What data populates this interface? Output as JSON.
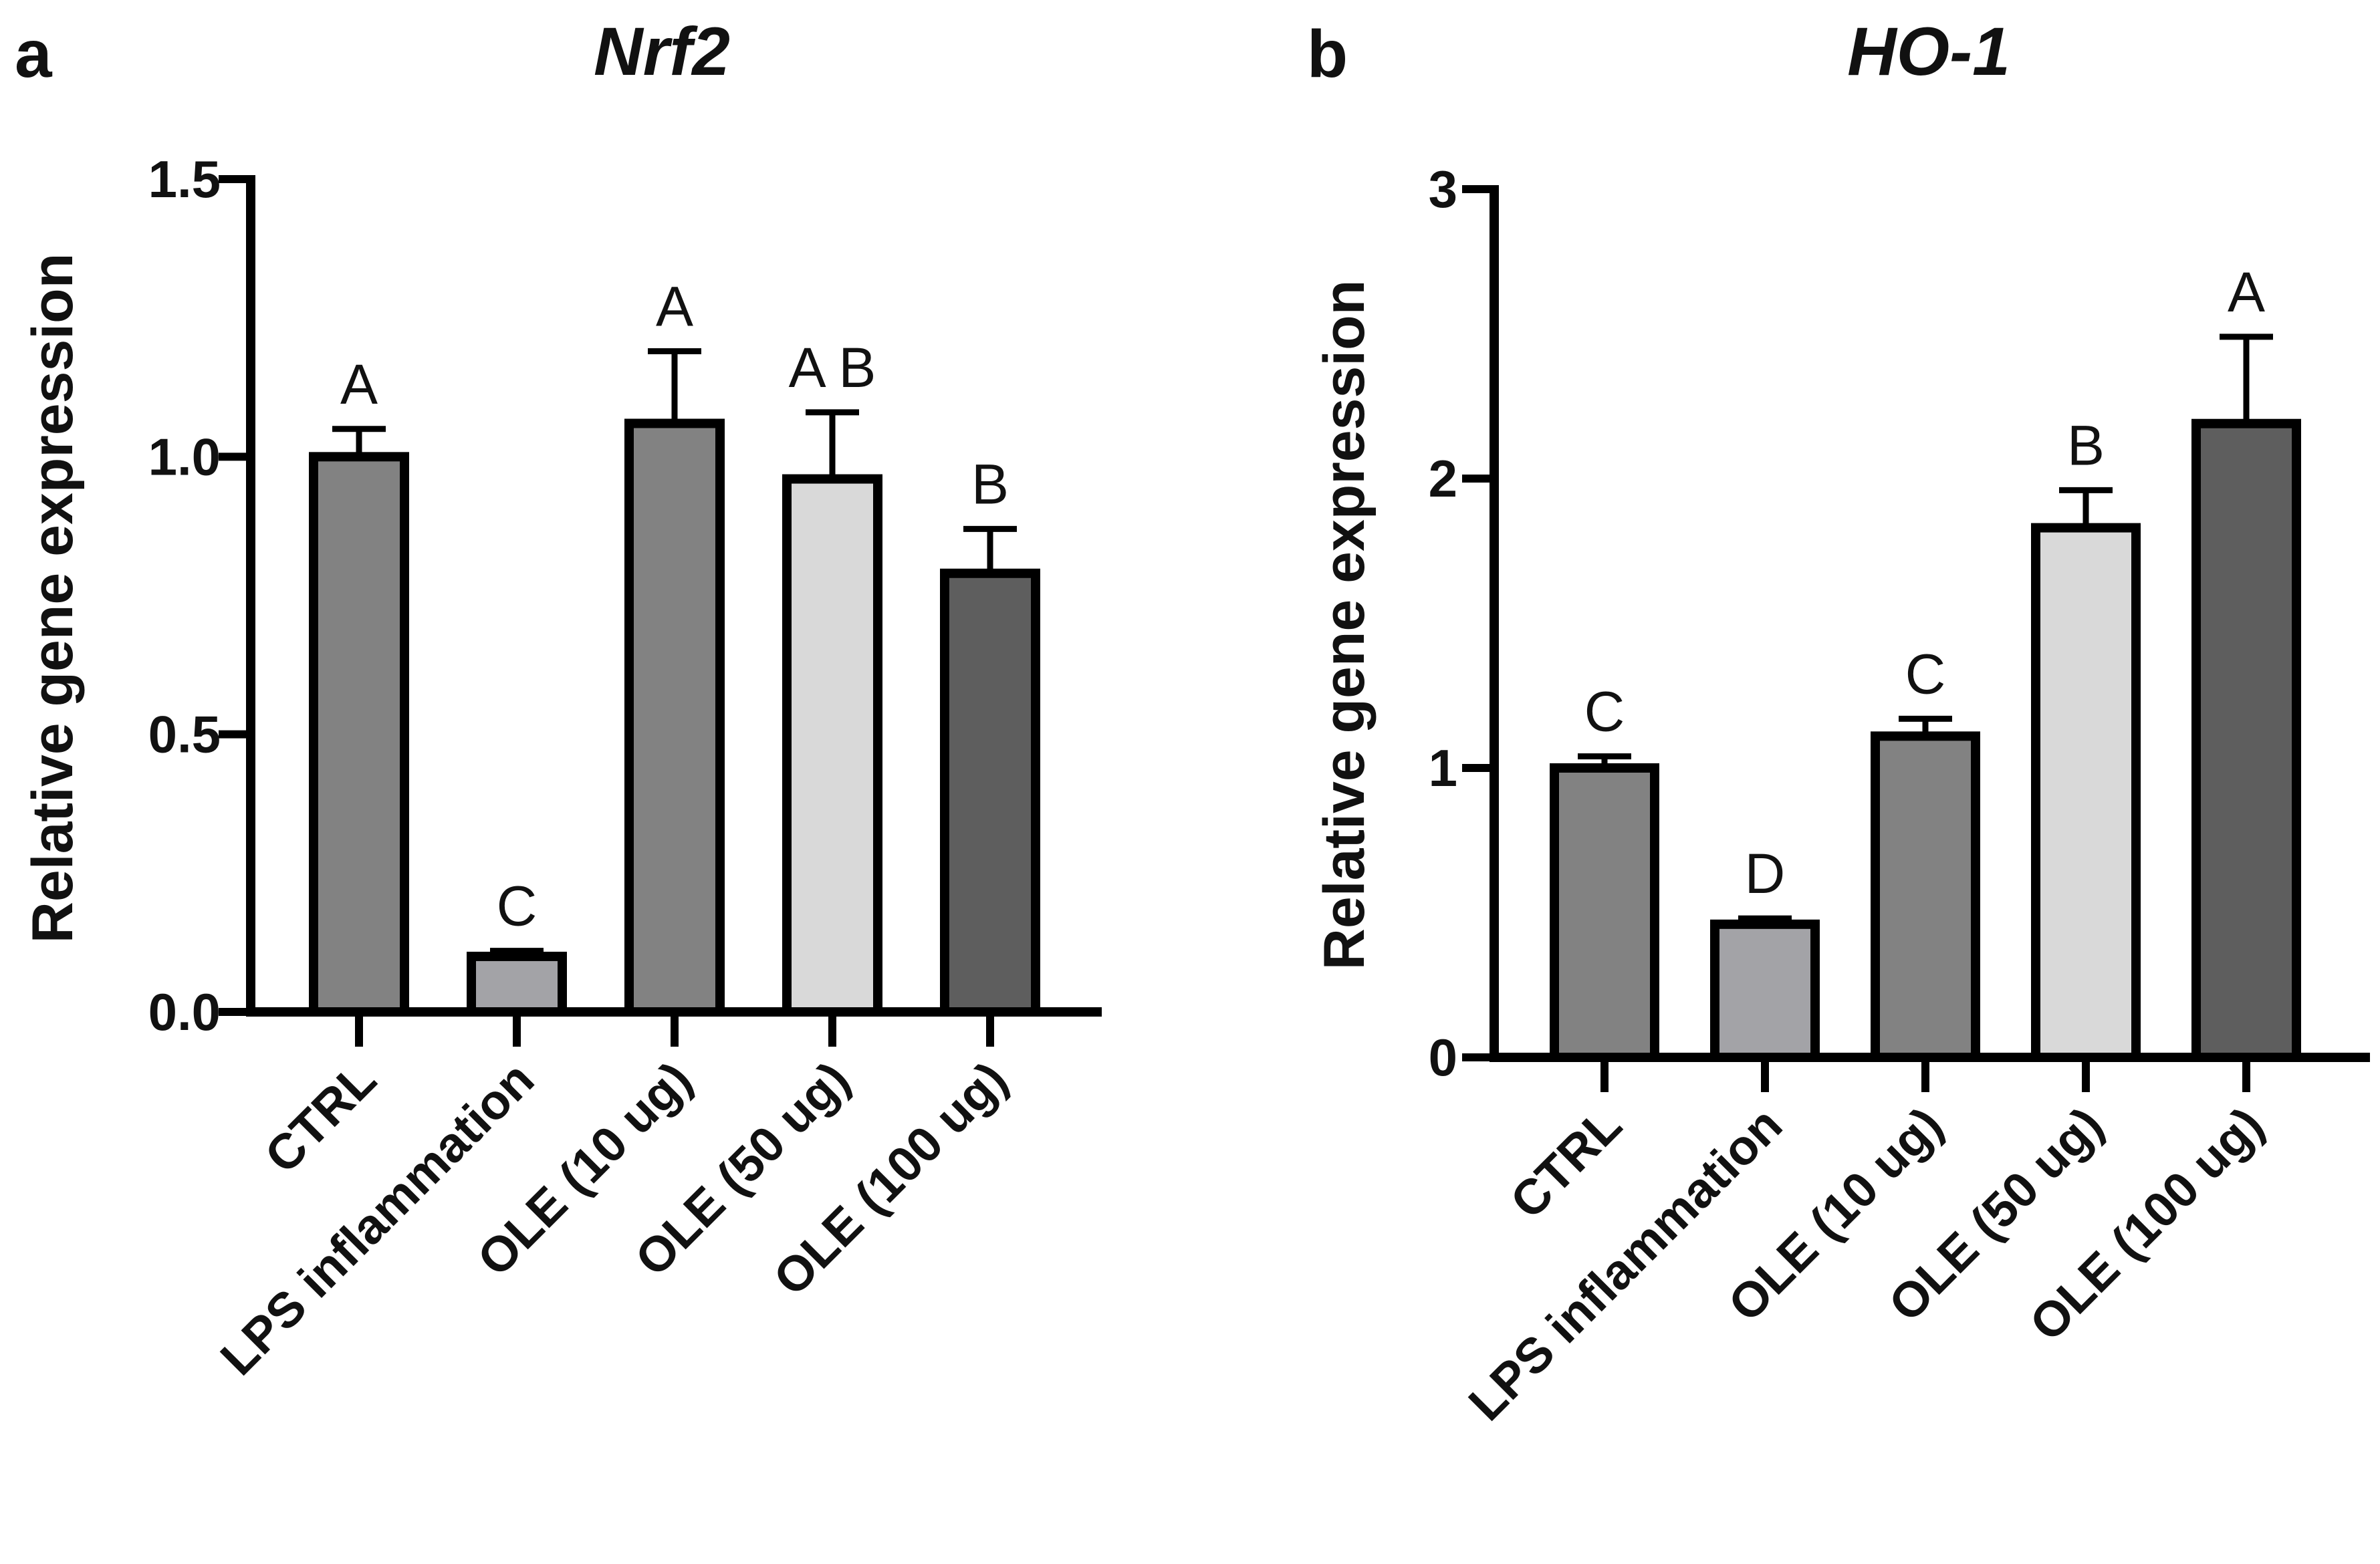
{
  "chart_data": [
    {
      "panel": "a",
      "type": "bar",
      "title": "Nrf2",
      "xlabel": "",
      "ylabel": "Relative gene expression",
      "ylim": [
        0,
        1.5
      ],
      "yticks": [
        0.0,
        0.5,
        1.0,
        1.5
      ],
      "ytick_labels": [
        "0.0",
        "0.5",
        "1.0",
        "1.5"
      ],
      "categories": [
        "CTRL",
        "LPS inflammation",
        "OLE (10 ug)",
        "OLE (50 ug)",
        "OLE (100 ug)"
      ],
      "values": [
        1.0,
        0.1,
        1.06,
        0.96,
        0.79
      ],
      "errors": [
        0.05,
        0.01,
        0.13,
        0.12,
        0.08
      ],
      "significance": [
        "A",
        "C",
        "A",
        "A B",
        "B"
      ],
      "colors": [
        "#828282",
        "#a3a3a7",
        "#828282",
        "#d9d9d9",
        "#5e5e5e"
      ]
    },
    {
      "panel": "b",
      "type": "bar",
      "title": "HO-1",
      "xlabel": "",
      "ylabel": "Relative gene expression",
      "ylim": [
        0,
        3
      ],
      "yticks": [
        0,
        1,
        2,
        3
      ],
      "ytick_labels": [
        "0",
        "1",
        "2",
        "3"
      ],
      "categories": [
        "CTRL",
        "LPS inflammation",
        "OLE (10 ug)",
        "OLE (50 ug)",
        "OLE (100 ug)"
      ],
      "values": [
        1.0,
        0.46,
        1.11,
        1.83,
        2.19
      ],
      "errors": [
        0.04,
        0.02,
        0.06,
        0.13,
        0.3
      ],
      "significance": [
        "C",
        "D",
        "C",
        "B",
        "A"
      ],
      "colors": [
        "#828282",
        "#a3a3a7",
        "#828282",
        "#d9d9d9",
        "#5e5e5e"
      ]
    }
  ]
}
